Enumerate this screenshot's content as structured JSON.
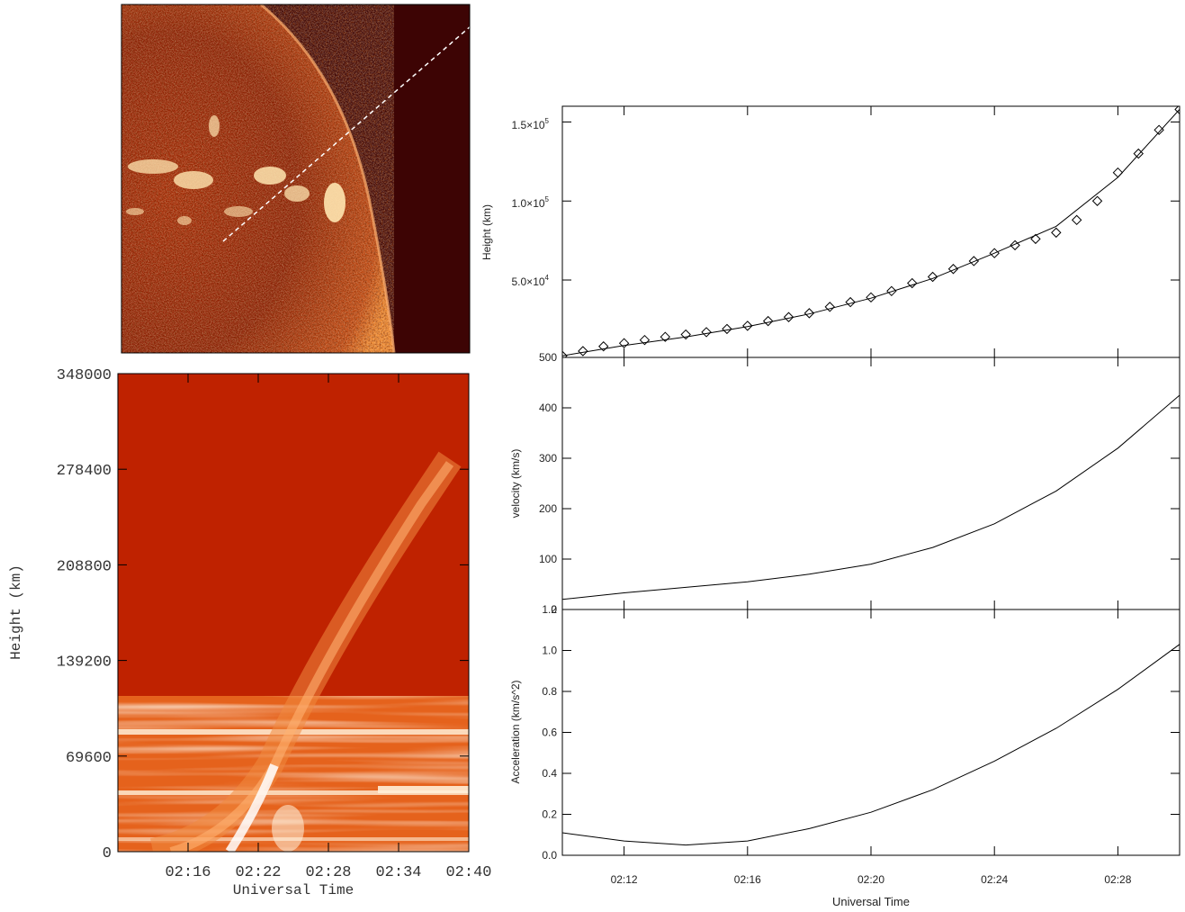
{
  "chart_data": [
    {
      "type": "image",
      "image": "solar-euv-limb-image",
      "annotation": "dashed slit line across the eruption"
    },
    {
      "type": "heatmap",
      "image": "time-distance-map",
      "xlabel": "Universal Time",
      "ylabel": "Height (km)",
      "x_ticks": [
        "02:16",
        "02:22",
        "02:28",
        "02:34",
        "02:40"
      ],
      "y_ticks": [
        "0",
        "69600",
        "139200",
        "208800",
        "278400",
        "348000"
      ],
      "xlim": [
        "02:10",
        "02:40"
      ],
      "ylim": [
        0,
        348000
      ]
    },
    {
      "type": "scatter",
      "ylabel": "Height (km)",
      "y_ticks": [
        "5.0×10^4",
        "1.0×10^5",
        "1.5×10^5"
      ],
      "x_range": [
        "02:10",
        "02:30"
      ],
      "ylim": [
        1000,
        160000
      ],
      "series": [
        {
          "marker": "diamond",
          "x": [
            "02:10:00",
            "02:10:40",
            "02:11:20",
            "02:12:00",
            "02:12:40",
            "02:13:20",
            "02:14:00",
            "02:14:40",
            "02:15:20",
            "02:16:00",
            "02:16:40",
            "02:17:20",
            "02:18:00",
            "02:18:40",
            "02:19:20",
            "02:20:00",
            "02:20:40",
            "02:21:20",
            "02:22:00",
            "02:22:40",
            "02:23:20",
            "02:24:00",
            "02:24:40",
            "02:25:20",
            "02:26:00",
            "02:26:40",
            "02:27:20",
            "02:28:00",
            "02:28:40",
            "02:29:20",
            "02:30:00"
          ],
          "y": [
            2000,
            5000,
            8000,
            10000,
            12000,
            14000,
            15500,
            17000,
            19000,
            21000,
            24000,
            26500,
            29000,
            33000,
            36000,
            39000,
            43000,
            48000,
            52000,
            57000,
            62000,
            67000,
            72000,
            76000,
            80000,
            88000,
            100000,
            118000,
            130000,
            145000,
            158000
          ]
        },
        {
          "type": "line",
          "x": [
            "02:10",
            "02:12",
            "02:14",
            "02:16",
            "02:18",
            "02:20",
            "02:22",
            "02:24",
            "02:26",
            "02:28",
            "02:30"
          ],
          "y": [
            2000,
            8500,
            14000,
            20500,
            28500,
            38500,
            51000,
            67000,
            84000,
            115000,
            158000
          ]
        }
      ]
    },
    {
      "type": "line",
      "ylabel": "velocity (km/s)",
      "y_ticks": [
        "0",
        "100",
        "200",
        "300",
        "400",
        "500"
      ],
      "ylim": [
        0,
        500
      ],
      "x": [
        "02:10",
        "02:12",
        "02:14",
        "02:16",
        "02:18",
        "02:20",
        "02:22",
        "02:24",
        "02:26",
        "02:28",
        "02:30"
      ],
      "y": [
        20,
        33,
        44,
        55,
        70,
        90,
        123,
        170,
        235,
        320,
        425
      ]
    },
    {
      "type": "line",
      "xlabel": "Universal Time",
      "ylabel": "Acceleration (km/s^2)",
      "x_ticks": [
        "02:12",
        "02:16",
        "02:20",
        "02:24",
        "02:28"
      ],
      "y_ticks": [
        "0.0",
        "0.2",
        "0.4",
        "0.6",
        "0.8",
        "1.0",
        "1.2"
      ],
      "ylim": [
        0,
        1.2
      ],
      "x": [
        "02:10",
        "02:12",
        "02:14",
        "02:16",
        "02:18",
        "02:20",
        "02:22",
        "02:24",
        "02:26",
        "02:28",
        "02:30"
      ],
      "y": [
        0.11,
        0.07,
        0.05,
        0.07,
        0.13,
        0.21,
        0.32,
        0.46,
        0.62,
        0.81,
        1.03
      ]
    }
  ]
}
